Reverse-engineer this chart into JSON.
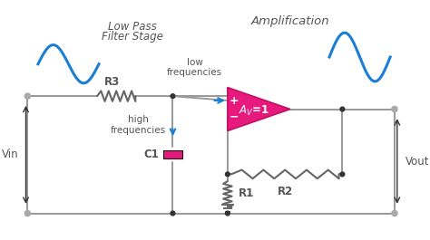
{
  "bg_color": "#ffffff",
  "wire_color": "#999999",
  "blue_color": "#1a7fd4",
  "pink_color": "#e8197d",
  "pink_edge": "#c01065",
  "text_color": "#555555",
  "comp_color": "#666666",
  "title1": "Low Pass",
  "title2": "Filter Stage",
  "title3": "Amplification",
  "label_vin": "Vin",
  "label_vout": "Vout",
  "label_r3": "R3",
  "label_r1": "R1",
  "label_r2": "R2",
  "label_c1": "C1",
  "label_av": "A",
  "label_low": "low\nfrequencies",
  "label_high": "high\nfrequencies",
  "plus_label": "+",
  "minus_label": "-"
}
